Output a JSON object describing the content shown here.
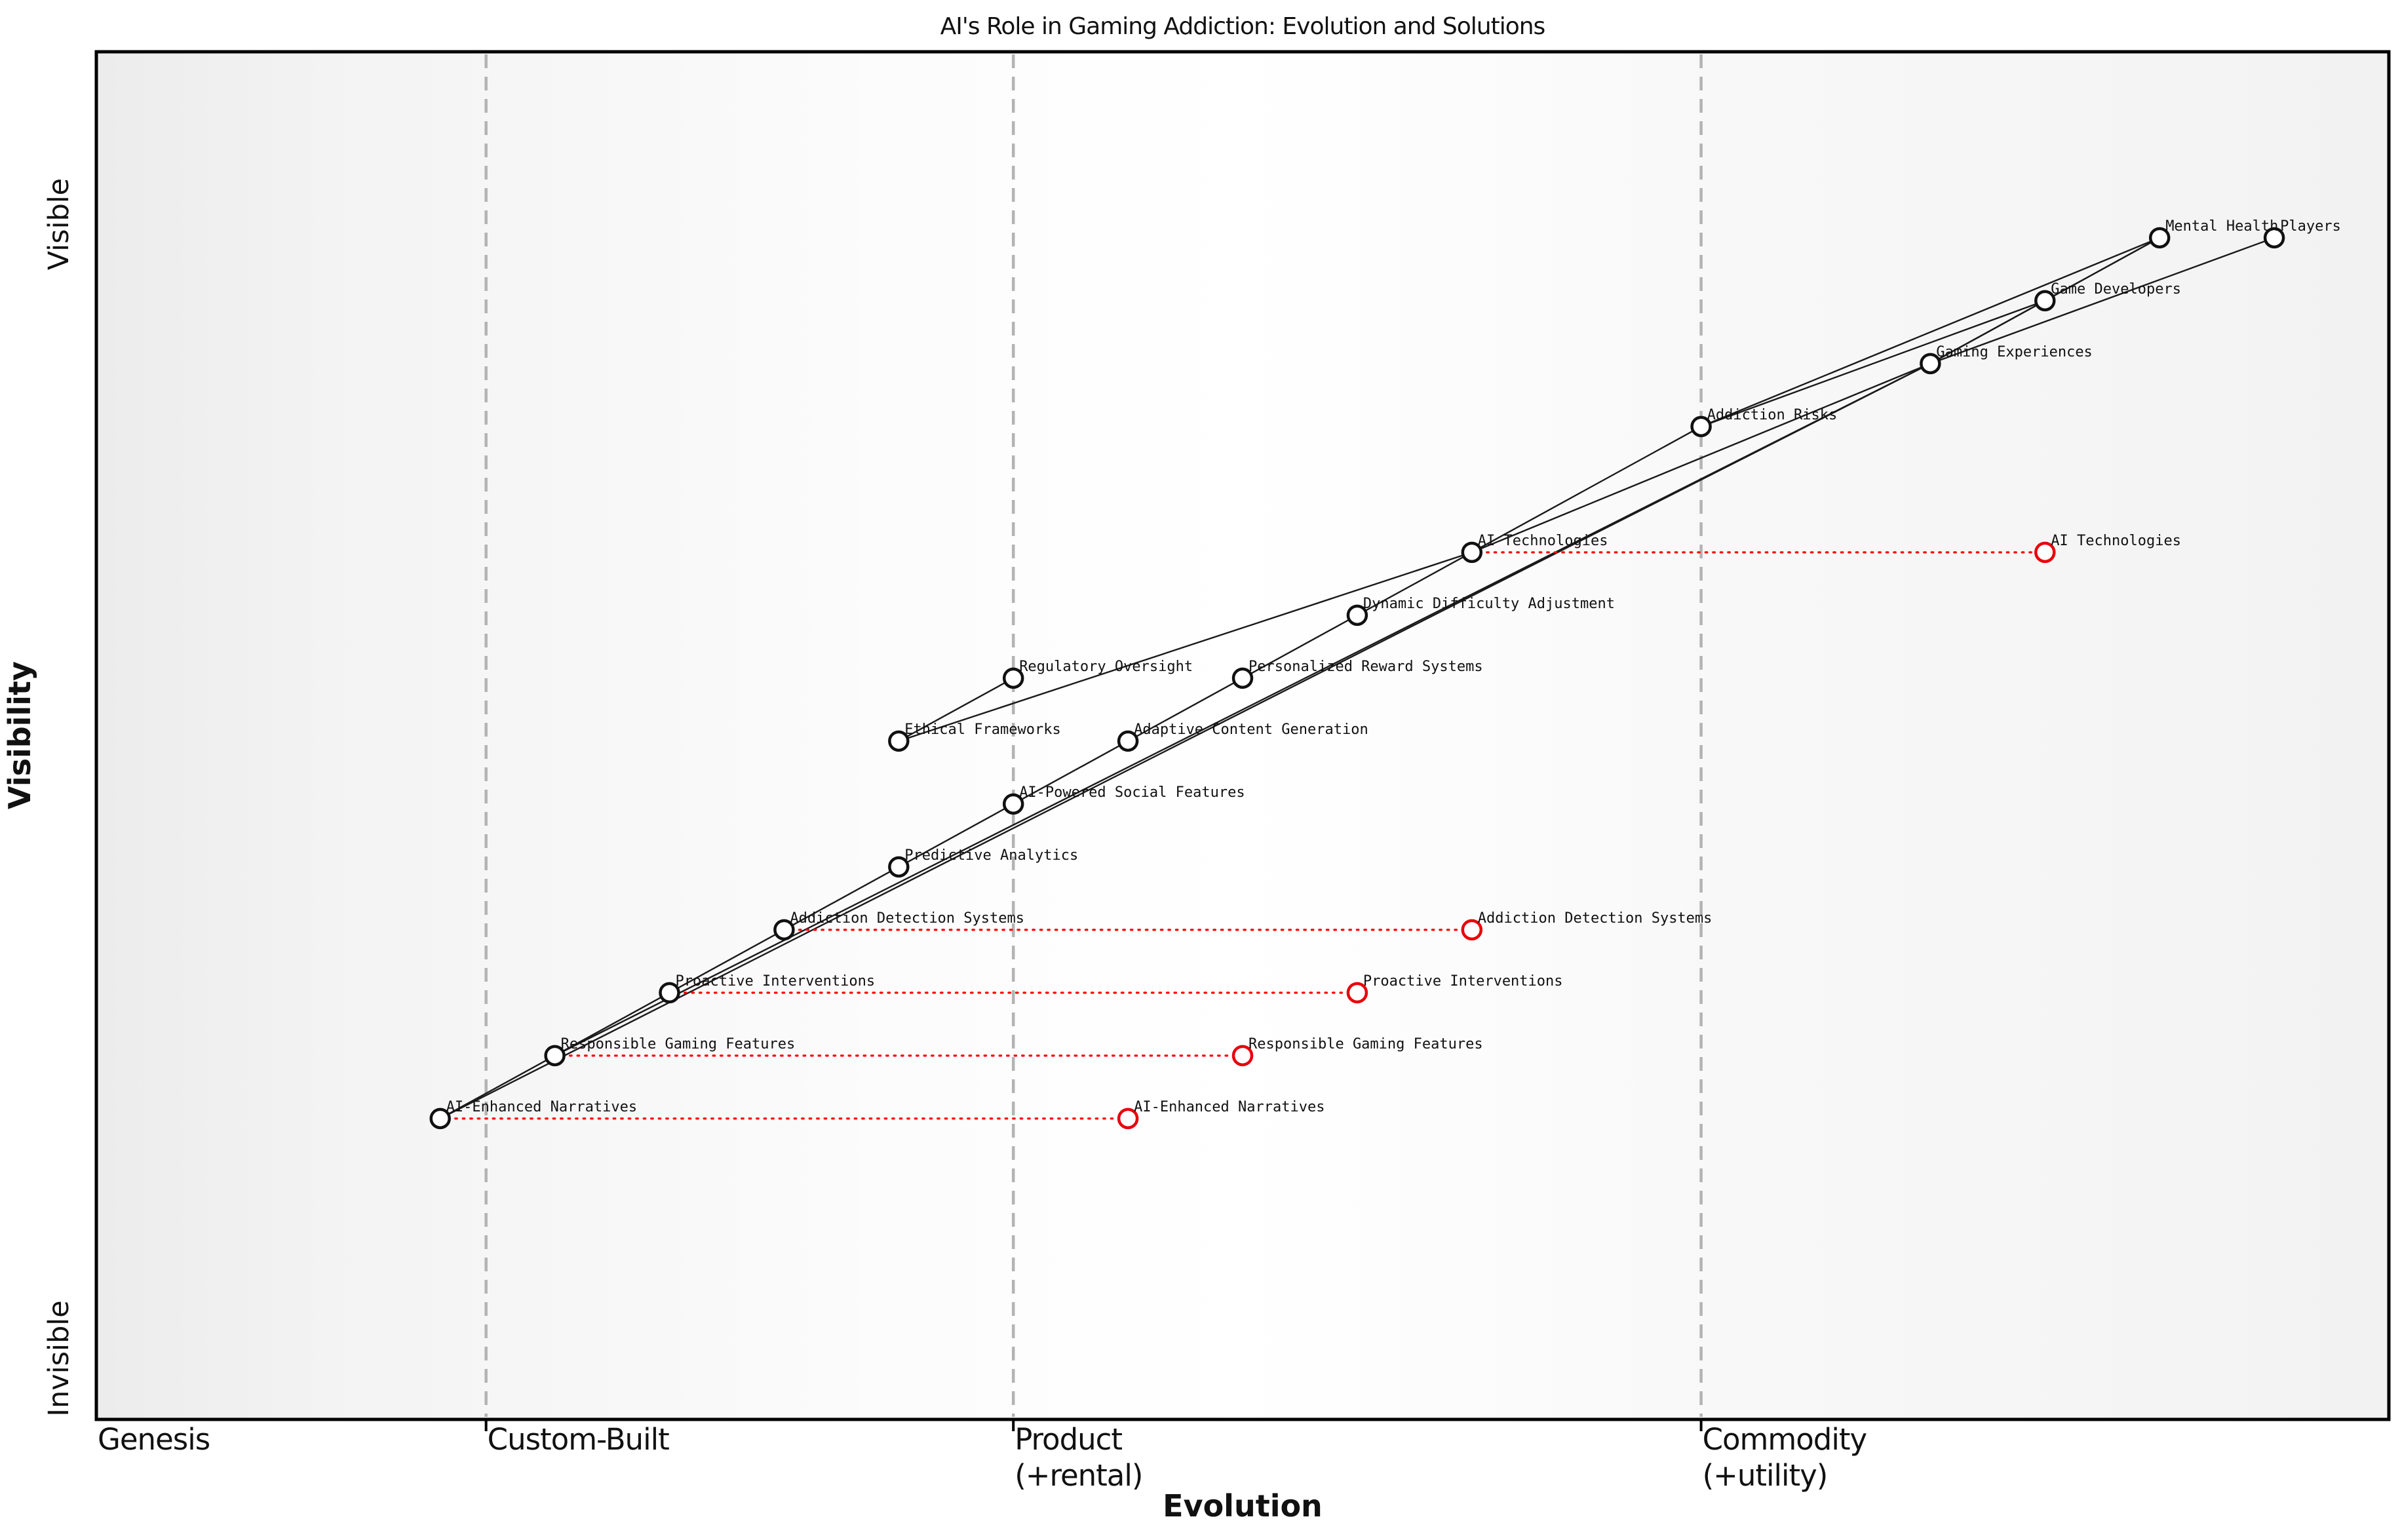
{
  "chart_data": {
    "type": "scatter",
    "subtype": "wardley-map",
    "title": "AI's Role in Gaming Addiction: Evolution and Solutions",
    "xlabel": "Evolution",
    "ylabel": "Visibility",
    "y_axis_end_labels": {
      "top": "Visible",
      "bottom": "Invisible"
    },
    "x_stages": [
      {
        "label_lines": [
          "Genesis"
        ],
        "position": 0.0
      },
      {
        "label_lines": [
          "Custom-Built"
        ],
        "position": 0.17
      },
      {
        "label_lines": [
          "Product",
          "(+rental)"
        ],
        "position": 0.4
      },
      {
        "label_lines": [
          "Commodity",
          "(+utility)"
        ],
        "position": 0.7
      }
    ],
    "stage_boundaries": [
      0.17,
      0.4,
      0.7
    ],
    "axis_ranges": {
      "x": [
        0,
        1
      ],
      "y": [
        0,
        1
      ]
    },
    "grid": "dashed-vertical-stage-boundaries",
    "legend": "none",
    "nodes": [
      {
        "id": "players",
        "label": "Players",
        "evolution": 0.95,
        "visibility": 0.864
      },
      {
        "id": "mental-health",
        "label": "Mental Health",
        "evolution": 0.9,
        "visibility": 0.864
      },
      {
        "id": "game-developers",
        "label": "Game Developers",
        "evolution": 0.85,
        "visibility": 0.818
      },
      {
        "id": "gaming-experiences",
        "label": "Gaming Experiences",
        "evolution": 0.8,
        "visibility": 0.772
      },
      {
        "id": "addiction-risks",
        "label": "Addiction Risks",
        "evolution": 0.7,
        "visibility": 0.726
      },
      {
        "id": "ai-technologies",
        "label": "AI Technologies",
        "evolution": 0.6,
        "visibility": 0.634
      },
      {
        "id": "dynamic-difficulty-adjustment",
        "label": "Dynamic Difficulty Adjustment",
        "evolution": 0.55,
        "visibility": 0.588
      },
      {
        "id": "personalized-reward-systems",
        "label": "Personalized Reward Systems",
        "evolution": 0.5,
        "visibility": 0.542
      },
      {
        "id": "regulatory-oversight",
        "label": "Regulatory Oversight",
        "evolution": 0.4,
        "visibility": 0.542
      },
      {
        "id": "adaptive-content-generation",
        "label": "Adaptive Content Generation",
        "evolution": 0.45,
        "visibility": 0.496
      },
      {
        "id": "ethical-frameworks",
        "label": "Ethical Frameworks",
        "evolution": 0.35,
        "visibility": 0.496
      },
      {
        "id": "ai-powered-social-features",
        "label": "AI-Powered Social Features",
        "evolution": 0.4,
        "visibility": 0.45
      },
      {
        "id": "predictive-analytics",
        "label": "Predictive Analytics",
        "evolution": 0.35,
        "visibility": 0.404
      },
      {
        "id": "addiction-detection-systems",
        "label": "Addiction Detection Systems",
        "evolution": 0.3,
        "visibility": 0.358
      },
      {
        "id": "proactive-interventions",
        "label": "Proactive Interventions",
        "evolution": 0.25,
        "visibility": 0.312
      },
      {
        "id": "responsible-gaming-features",
        "label": "Responsible Gaming Features",
        "evolution": 0.2,
        "visibility": 0.266
      },
      {
        "id": "ai-enhanced-narratives",
        "label": "AI-Enhanced Narratives",
        "evolution": 0.15,
        "visibility": 0.22
      }
    ],
    "evolved_nodes": [
      {
        "id": "ai-technologies",
        "label": "AI Technologies",
        "evolution": 0.85,
        "visibility": 0.634
      },
      {
        "id": "addiction-detection-systems",
        "label": "Addiction Detection Systems",
        "evolution": 0.6,
        "visibility": 0.358
      },
      {
        "id": "proactive-interventions",
        "label": "Proactive Interventions",
        "evolution": 0.55,
        "visibility": 0.312
      },
      {
        "id": "responsible-gaming-features",
        "label": "Responsible Gaming Features",
        "evolution": 0.5,
        "visibility": 0.266
      },
      {
        "id": "ai-enhanced-narratives",
        "label": "AI-Enhanced Narratives",
        "evolution": 0.45,
        "visibility": 0.22
      }
    ],
    "edges": [
      [
        "ai-enhanced-narratives",
        "responsible-gaming-features"
      ],
      [
        "responsible-gaming-features",
        "proactive-interventions"
      ],
      [
        "proactive-interventions",
        "addiction-detection-systems"
      ],
      [
        "addiction-detection-systems",
        "predictive-analytics"
      ],
      [
        "predictive-analytics",
        "ai-powered-social-features"
      ],
      [
        "ai-powered-social-features",
        "adaptive-content-generation"
      ],
      [
        "adaptive-content-generation",
        "personalized-reward-systems"
      ],
      [
        "personalized-reward-systems",
        "dynamic-difficulty-adjustment"
      ],
      [
        "dynamic-difficulty-adjustment",
        "ai-technologies"
      ],
      [
        "ethical-frameworks",
        "regulatory-oversight"
      ],
      [
        "ethical-frameworks",
        "ai-technologies"
      ],
      [
        "ai-enhanced-narratives",
        "gaming-experiences"
      ],
      [
        "responsible-gaming-features",
        "gaming-experiences"
      ],
      [
        "ai-technologies",
        "addiction-risks"
      ],
      [
        "ai-technologies",
        "gaming-experiences"
      ],
      [
        "addiction-risks",
        "game-developers"
      ],
      [
        "addiction-risks",
        "mental-health"
      ],
      [
        "gaming-experiences",
        "game-developers"
      ],
      [
        "gaming-experiences",
        "mental-health"
      ],
      [
        "game-developers",
        "mental-health"
      ],
      [
        "players",
        "gaming-experiences"
      ]
    ],
    "evolution_links": [
      "ai-technologies",
      "addiction-detection-systems",
      "proactive-interventions",
      "responsible-gaming-features",
      "ai-enhanced-narratives"
    ],
    "colors": {
      "node_stroke": "#111111",
      "node_fill": "#ffffff",
      "evolved_node_stroke": "#e8000b",
      "edge": "#1a1a1a",
      "evolution_link": "#ff0000",
      "boundary_dash": "#b3b3b3",
      "frame": "#000000",
      "bg_left": "#ececec",
      "bg_center": "#ffffff",
      "bg_right": "#f2f2f2"
    }
  }
}
